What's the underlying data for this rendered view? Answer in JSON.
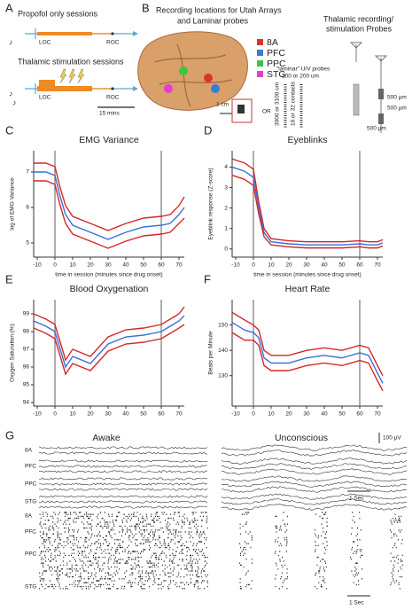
{
  "panel_a": {
    "letter": "A",
    "propofol": "Propofol only sessions",
    "thalamic": "Thalamic stimulation sessions",
    "loc1": "LOC",
    "roc1": "ROC",
    "loc2": "LOC",
    "roc2": "ROC",
    "scale": "15 mins"
  },
  "panel_b": {
    "letter": "B",
    "title1": "Recording locations for Utah Arrays",
    "title2": "and Laminar probes",
    "legend": [
      {
        "label": "8A",
        "color": "#e0302a"
      },
      {
        "label": "PFC",
        "color": "#3a7bd5"
      },
      {
        "label": "PPC",
        "color": "#3ec43e"
      },
      {
        "label": "STG",
        "color": "#e83bd0"
      }
    ],
    "cm": "1 cm",
    "or": "OR",
    "laminar1": "\"laminar\" U/V probes",
    "laminar2": "100 or 200 um",
    "contacts": "16 or 32 contacts",
    "length": "3000 or 3100 um",
    "thal1": "Thalamic recording/",
    "thal2": "stimulation Probes",
    "um1": "500 µm",
    "um2": "500 µm",
    "um3": "500 µm"
  },
  "chart_data": [
    {
      "type": "line",
      "panel": "C",
      "title": "EMG Variance",
      "y_label": "log of EMG Variance",
      "x_label": "time in session (minutes since drug onset)",
      "x": [
        -12,
        -5,
        0,
        3,
        6,
        10,
        20,
        30,
        40,
        50,
        60,
        65,
        70,
        73
      ],
      "series": [
        {
          "color": "#d62728",
          "values": [
            7.25,
            7.25,
            7.15,
            6.55,
            6.05,
            5.75,
            5.55,
            5.35,
            5.55,
            5.7,
            5.75,
            5.8,
            6.05,
            6.3
          ]
        },
        {
          "color": "#3a6fd8",
          "values": [
            7.0,
            7.0,
            6.9,
            6.3,
            5.8,
            5.5,
            5.3,
            5.1,
            5.3,
            5.45,
            5.5,
            5.55,
            5.8,
            6.0
          ]
        },
        {
          "color": "#d62728",
          "values": [
            6.75,
            6.75,
            6.65,
            6.05,
            5.55,
            5.25,
            5.05,
            4.85,
            5.05,
            5.2,
            5.25,
            5.3,
            5.55,
            5.7
          ]
        }
      ],
      "vlines": [
        0,
        60
      ],
      "xlim": [
        -12,
        73
      ],
      "xticks": [
        -10,
        0,
        10,
        20,
        30,
        40,
        50,
        60,
        70
      ],
      "ylim": [
        4.6,
        7.6
      ],
      "yticks": [
        5,
        6,
        7
      ]
    },
    {
      "type": "line",
      "panel": "D",
      "title": "Eyeblinks",
      "y_label": "Eyeblink response (Z-score)",
      "x_label": "time in session (minutes since drug onset)",
      "x": [
        -12,
        -5,
        0,
        3,
        6,
        10,
        20,
        30,
        40,
        50,
        60,
        65,
        70,
        73
      ],
      "series": [
        {
          "color": "#d62728",
          "values": [
            4.4,
            4.2,
            3.9,
            2.3,
            1.0,
            0.5,
            0.4,
            0.35,
            0.35,
            0.35,
            0.4,
            0.35,
            0.35,
            0.45
          ]
        },
        {
          "color": "#3a6fd8",
          "values": [
            4.0,
            3.8,
            3.5,
            2.0,
            0.8,
            0.35,
            0.25,
            0.2,
            0.2,
            0.2,
            0.25,
            0.2,
            0.2,
            0.3
          ]
        },
        {
          "color": "#d62728",
          "values": [
            3.6,
            3.4,
            3.1,
            1.7,
            0.6,
            0.2,
            0.1,
            0.05,
            0.05,
            0.05,
            0.1,
            0.05,
            0.05,
            0.15
          ]
        }
      ],
      "vlines": [
        0,
        60
      ],
      "xlim": [
        -12,
        73
      ],
      "xticks": [
        -10,
        0,
        10,
        20,
        30,
        40,
        50,
        60,
        70
      ],
      "ylim": [
        -0.4,
        4.8
      ],
      "yticks": [
        0,
        1,
        2,
        3,
        4
      ]
    },
    {
      "type": "line",
      "panel": "E",
      "title": "Blood Oxygenation",
      "y_label": "Oxygen Saturation (%)",
      "x": [
        -12,
        -5,
        0,
        3,
        6,
        10,
        20,
        30,
        40,
        50,
        60,
        65,
        70,
        73
      ],
      "series": [
        {
          "color": "#d62728",
          "values": [
            99.0,
            98.7,
            98.4,
            97.4,
            96.4,
            97.0,
            96.6,
            97.7,
            98.1,
            98.2,
            98.4,
            98.7,
            99.0,
            99.4
          ]
        },
        {
          "color": "#3a6fd8",
          "values": [
            98.6,
            98.3,
            98.0,
            97.0,
            96.0,
            96.6,
            96.2,
            97.3,
            97.7,
            97.8,
            98.0,
            98.3,
            98.6,
            98.9
          ]
        },
        {
          "color": "#d62728",
          "values": [
            98.2,
            97.9,
            97.6,
            96.6,
            95.6,
            96.2,
            95.8,
            96.9,
            97.3,
            97.4,
            97.6,
            97.9,
            98.2,
            98.4
          ]
        }
      ],
      "vlines": [
        0,
        60
      ],
      "xlim": [
        -12,
        73
      ],
      "xticks": [
        -10,
        0,
        10,
        20,
        30,
        40,
        50,
        60,
        70
      ],
      "ylim": [
        93.8,
        99.8
      ],
      "yticks": [
        94,
        95,
        96,
        97,
        98,
        99
      ]
    },
    {
      "type": "line",
      "panel": "F",
      "title": "Heart Rate",
      "y_label": "Beats per Minute",
      "x": [
        -12,
        -5,
        0,
        3,
        6,
        10,
        20,
        30,
        40,
        50,
        60,
        65,
        70,
        73
      ],
      "series": [
        {
          "color": "#d62728",
          "values": [
            155,
            152,
            150,
            148,
            140,
            138,
            138,
            140,
            141,
            140,
            142,
            141,
            134,
            130
          ]
        },
        {
          "color": "#3a6fd8",
          "values": [
            151,
            148,
            147,
            145,
            137,
            135,
            135,
            137,
            138,
            137,
            139,
            138,
            131,
            127
          ]
        },
        {
          "color": "#d62728",
          "values": [
            147,
            144,
            144,
            142,
            134,
            132,
            132,
            134,
            135,
            134,
            136,
            135,
            128,
            124
          ]
        }
      ],
      "vlines": [
        0,
        60
      ],
      "xlim": [
        -12,
        73
      ],
      "xticks": [
        -10,
        0,
        10,
        20,
        30,
        40,
        50,
        60,
        70
      ],
      "ylim": [
        118,
        160
      ],
      "yticks": [
        130,
        140,
        150
      ]
    }
  ],
  "panel_g": {
    "letter": "G",
    "awake": "Awake",
    "unconscious": "Unconscious",
    "uv": "100 µV",
    "sec1": "1 Sec",
    "sec2": "1 Sec",
    "trace_labels": [
      "8A",
      "PFC",
      "PPC",
      "STG"
    ],
    "raster_labels": [
      "8A",
      "PFC",
      "PPC",
      "STG"
    ]
  }
}
